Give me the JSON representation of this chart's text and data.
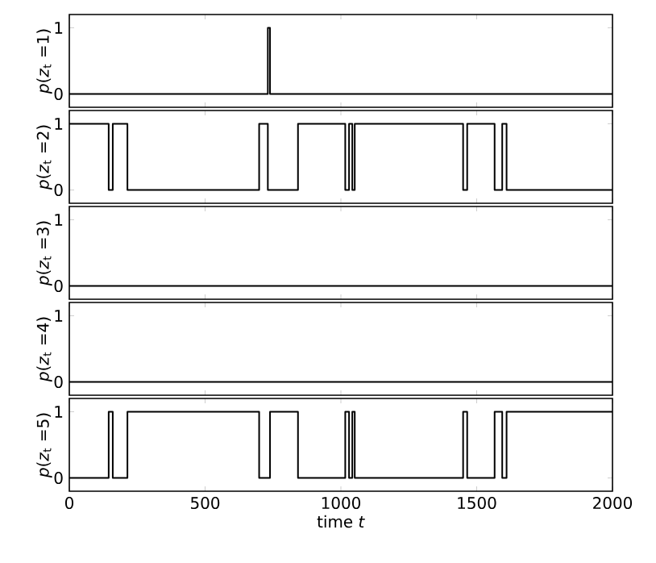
{
  "chart_data": [
    {
      "type": "step",
      "x": [
        0,
        731,
        739,
        2000
      ],
      "series": [
        {
          "color": "#000000",
          "values": [
            0,
            1,
            0,
            0
          ]
        }
      ],
      "xlim": [
        0,
        2000
      ],
      "xticks": [
        0,
        500,
        1000,
        1500,
        2000
      ],
      "ylim": [
        -0.2,
        1.2
      ],
      "yticks": [
        0,
        1
      ],
      "ylabel": "*p*(*z*$_{t}$ =1)",
      "tick_labels": "y"
    },
    {
      "type": "step",
      "x": [
        0,
        145,
        160,
        214,
        699,
        731,
        842,
        1016,
        1030,
        1042,
        1051,
        1450,
        1465,
        1566,
        1594,
        1610,
        2000
      ],
      "series": [
        {
          "color": "#000000",
          "values": [
            1,
            0,
            1,
            0,
            1,
            0,
            1,
            0,
            1,
            0,
            1,
            0,
            1,
            0,
            1,
            0,
            0
          ]
        }
      ],
      "xlim": [
        0,
        2000
      ],
      "xticks": [
        0,
        500,
        1000,
        1500,
        2000
      ],
      "ylim": [
        -0.2,
        1.2
      ],
      "yticks": [
        0,
        1
      ],
      "ylabel": "*p*(*z*$_{t}$ =2)",
      "tick_labels": "y"
    },
    {
      "type": "step",
      "x": [
        0,
        2000
      ],
      "series": [
        {
          "color": "#000000",
          "values": [
            0,
            0
          ]
        }
      ],
      "xlim": [
        0,
        2000
      ],
      "xticks": [
        0,
        500,
        1000,
        1500,
        2000
      ],
      "ylim": [
        -0.2,
        1.2
      ],
      "yticks": [
        0,
        1
      ],
      "ylabel": "*p*(*z*$_{t}$ =3)",
      "tick_labels": "y"
    },
    {
      "type": "step",
      "x": [
        0,
        2000
      ],
      "series": [
        {
          "color": "#000000",
          "values": [
            0,
            0
          ]
        }
      ],
      "xlim": [
        0,
        2000
      ],
      "xticks": [
        0,
        500,
        1000,
        1500,
        2000
      ],
      "ylim": [
        -0.2,
        1.2
      ],
      "yticks": [
        0,
        1
      ],
      "ylabel": "*p*(*z*$_{t}$ =4)",
      "tick_labels": "y"
    },
    {
      "type": "step",
      "x": [
        0,
        145,
        160,
        214,
        699,
        739,
        842,
        1016,
        1030,
        1042,
        1051,
        1450,
        1465,
        1566,
        1594,
        1610,
        2000
      ],
      "series": [
        {
          "color": "#000000",
          "values": [
            0,
            1,
            0,
            1,
            0,
            1,
            0,
            1,
            0,
            1,
            0,
            1,
            0,
            1,
            0,
            1,
            1
          ]
        }
      ],
      "xlim": [
        0,
        2000
      ],
      "xticks": [
        0,
        500,
        1000,
        1500,
        2000
      ],
      "ylim": [
        -0.2,
        1.2
      ],
      "yticks": [
        0,
        1
      ],
      "ylabel": "*p*(*z*$_{t}$ =5)",
      "xlabel": "time *t*"
    }
  ]
}
